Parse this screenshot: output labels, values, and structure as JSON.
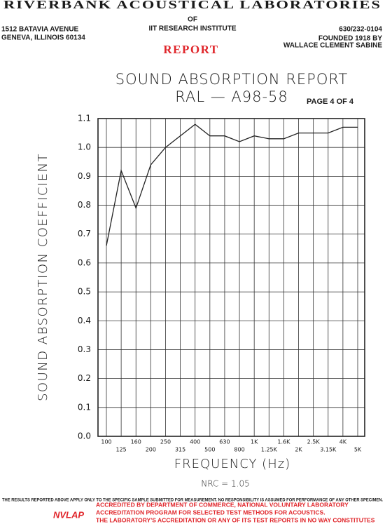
{
  "header": {
    "name": "RIVERBANK ACOUSTICAL LABORATORIES",
    "address_line1": "1512 BATAVIA AVENUE",
    "address_line2": "GENEVA, ILLINOIS 60134",
    "of": "OF",
    "institute": "IIT RESEARCH INSTITUTE",
    "phone": "630/232-0104",
    "founded_line1": "FOUNDED 1918 BY",
    "founded_line2": "WALLACE CLEMENT SABINE",
    "report": "REPORT"
  },
  "chart_data": {
    "type": "line",
    "title": "SOUND ABSORPTION REPORT",
    "subtitle": "RAL — A98-58",
    "page": "PAGE 4 OF 4",
    "x_label": "FREQUENCY (Hz)",
    "y_label": "SOUND ABSORPTION COEFFICIENT",
    "annotation": "NRC = 1.05",
    "categories": [
      "100",
      "125",
      "160",
      "200",
      "250",
      "315",
      "400",
      "500",
      "630",
      "800",
      "1K",
      "1.25K",
      "1.6K",
      "2K",
      "2.5K",
      "3.15K",
      "4K",
      "5K"
    ],
    "values": [
      0.66,
      0.92,
      0.79,
      0.94,
      1.0,
      1.04,
      1.08,
      1.04,
      1.04,
      1.02,
      1.04,
      1.03,
      1.03,
      1.05,
      1.05,
      1.05,
      1.07,
      1.07
    ],
    "color": "#222222",
    "ylim": [
      0,
      1.1
    ],
    "yticks": [
      {
        "value": 0,
        "label": "0.0"
      },
      0.1,
      0.2,
      0.3,
      0.4,
      0.5,
      0.6,
      0.7,
      0.8,
      0.9,
      {
        "value": 1,
        "label": "1.0"
      },
      1.1
    ],
    "grid": true
  },
  "footer": {
    "disclaimer": "THE RESULTS REPORTED ABOVE APPLY ONLY TO THE SPECIFIC SAMPLE SUBMITTED FOR MEASUREMENT. NO RESPONSIBILITY IS ASSUMED FOR PERFORMANCE OF ANY OTHER SPECIMEN.",
    "logo": "NVLAP",
    "accreditation_line1": "ACCREDITED BY DEPARTMENT OF COMMERCE, NATIONAL VOLUNTARY LABORATORY",
    "accreditation_line2": "ACCREDITATION PROGRAM FOR SELECTED TEST METHODS FOR ACOUSTICS.",
    "accreditation_line3": "THE LABORATORY'S ACCREDITATION OR ANY OF ITS TEST REPORTS IN NO WAY CONSTITUTES"
  }
}
